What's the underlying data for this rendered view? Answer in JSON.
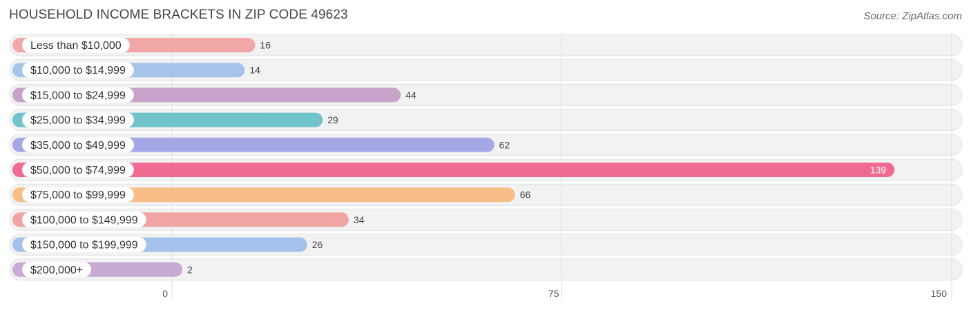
{
  "title": "HOUSEHOLD INCOME BRACKETS IN ZIP CODE 49623",
  "source": "Source: ZipAtlas.com",
  "chart_data": {
    "type": "bar",
    "orientation": "horizontal",
    "title": "HOUSEHOLD INCOME BRACKETS IN ZIP CODE 49623",
    "categories": [
      "Less than $10,000",
      "$10,000 to $14,999",
      "$15,000 to $24,999",
      "$25,000 to $34,999",
      "$35,000 to $49,999",
      "$50,000 to $74,999",
      "$75,000 to $99,999",
      "$100,000 to $149,999",
      "$150,000 to $199,999",
      "$200,000+"
    ],
    "values": [
      16,
      14,
      44,
      29,
      62,
      139,
      66,
      34,
      26,
      2
    ],
    "colors": [
      "#f2a7a7",
      "#a6c4ea",
      "#c7a2c9",
      "#72c4cc",
      "#a4a9e6",
      "#f06b94",
      "#f8be87",
      "#f0a5a2",
      "#a3c1ea",
      "#c8aad4"
    ],
    "xlim": [
      0,
      150
    ],
    "xticks": [
      0,
      75,
      150
    ],
    "grid": true,
    "value_labels": [
      "16",
      "14",
      "44",
      "29",
      "62",
      "139",
      "66",
      "34",
      "26",
      "2"
    ],
    "tick_labels": [
      "0",
      "75",
      "150"
    ]
  }
}
